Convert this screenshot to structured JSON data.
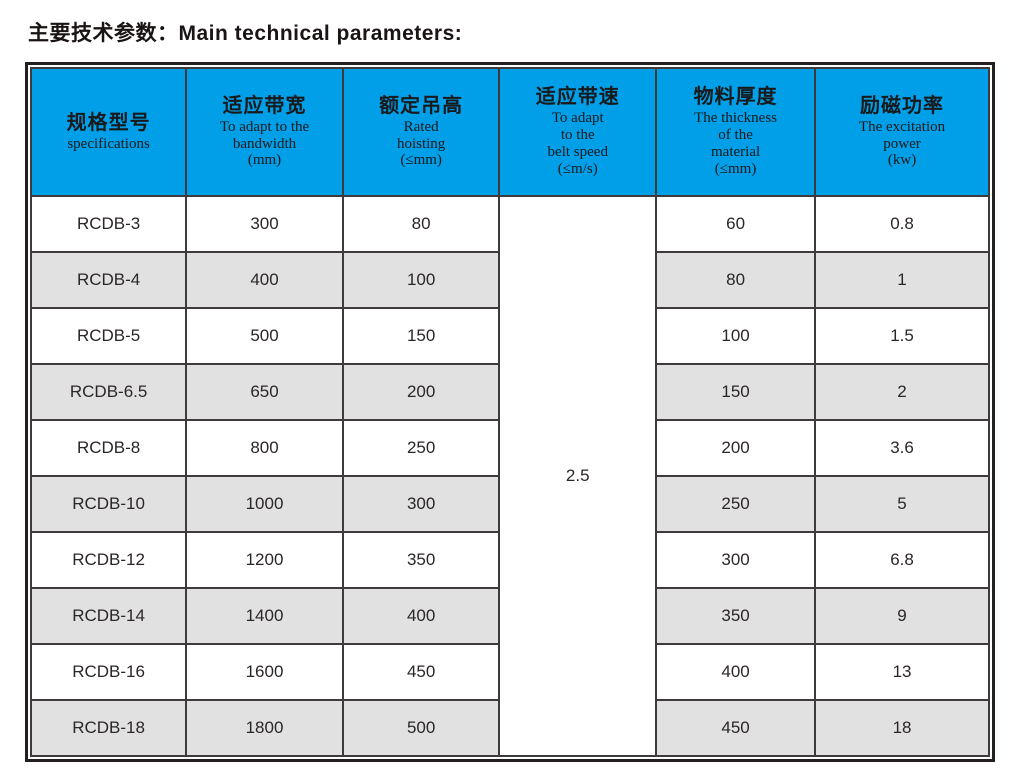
{
  "page_title": "主要技术参数：Main technical parameters:",
  "colors": {
    "header_bg": "#019fe8",
    "row_alt_bg": "#e1e1e1",
    "row_bg": "#ffffff",
    "border_outer": "#231f20",
    "border_inner": "#3f3b3c",
    "text": "#231f20"
  },
  "table": {
    "headers": [
      {
        "zh": "规格型号",
        "en": "specifications"
      },
      {
        "zh": "适应带宽",
        "en": "To adapt to the\nbandwidth\n(mm)"
      },
      {
        "zh": "额定吊高",
        "en": "Rated\nhoisting\n(≤mm)"
      },
      {
        "zh": "适应带速",
        "en": "To adapt\nto the\nbelt speed\n(≤m/s)"
      },
      {
        "zh": "物料厚度",
        "en": "The thickness\nof the\nmaterial\n(≤mm)"
      },
      {
        "zh": "励磁功率",
        "en": "The excitation\npower\n(kw)"
      }
    ],
    "belt_speed": "2.5",
    "rows": [
      {
        "model": "RCDB-3",
        "bandwidth": "300",
        "hoisting": "80",
        "thickness": "60",
        "power": "0.8"
      },
      {
        "model": "RCDB-4",
        "bandwidth": "400",
        "hoisting": "100",
        "thickness": "80",
        "power": "1"
      },
      {
        "model": "RCDB-5",
        "bandwidth": "500",
        "hoisting": "150",
        "thickness": "100",
        "power": "1.5"
      },
      {
        "model": "RCDB-6.5",
        "bandwidth": "650",
        "hoisting": "200",
        "thickness": "150",
        "power": "2"
      },
      {
        "model": "RCDB-8",
        "bandwidth": "800",
        "hoisting": "250",
        "thickness": "200",
        "power": "3.6"
      },
      {
        "model": "RCDB-10",
        "bandwidth": "1000",
        "hoisting": "300",
        "thickness": "250",
        "power": "5"
      },
      {
        "model": "RCDB-12",
        "bandwidth": "1200",
        "hoisting": "350",
        "thickness": "300",
        "power": "6.8"
      },
      {
        "model": "RCDB-14",
        "bandwidth": "1400",
        "hoisting": "400",
        "thickness": "350",
        "power": "9"
      },
      {
        "model": "RCDB-16",
        "bandwidth": "1600",
        "hoisting": "450",
        "thickness": "400",
        "power": "13"
      },
      {
        "model": "RCDB-18",
        "bandwidth": "1800",
        "hoisting": "500",
        "thickness": "450",
        "power": "18"
      }
    ]
  }
}
